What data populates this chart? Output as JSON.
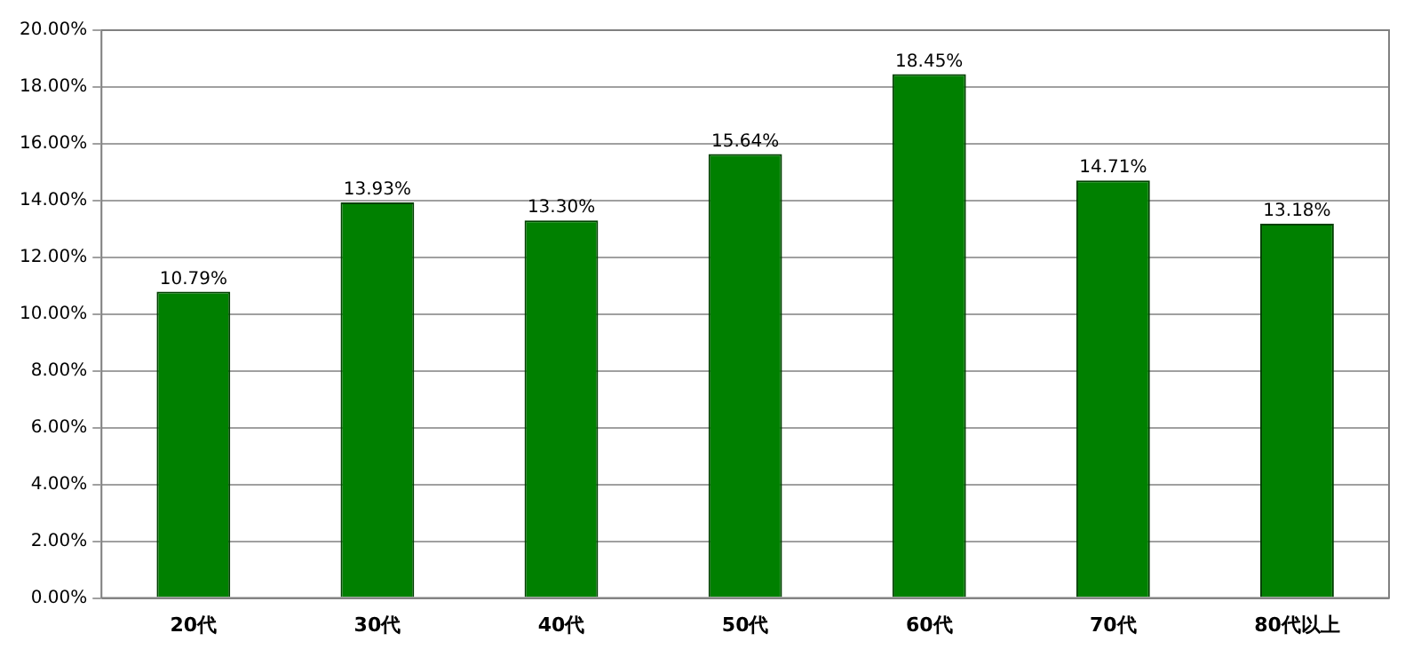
{
  "chart_data": {
    "type": "bar",
    "categories": [
      "20代",
      "30代",
      "40代",
      "50代",
      "60代",
      "70代",
      "80代以上"
    ],
    "values": [
      10.79,
      13.93,
      13.3,
      15.64,
      18.45,
      14.71,
      13.18
    ],
    "value_labels": [
      "10.79%",
      "13.93%",
      "13.30%",
      "15.64%",
      "18.45%",
      "14.71%",
      "13.18%"
    ],
    "color": "#008000",
    "ylim": [
      0,
      20
    ],
    "yticks": [
      {
        "value": 0,
        "label": "0.00%"
      },
      {
        "value": 2,
        "label": "2.00%"
      },
      {
        "value": 4,
        "label": "4.00%"
      },
      {
        "value": 6,
        "label": "6.00%"
      },
      {
        "value": 8,
        "label": "8.00%"
      },
      {
        "value": 10,
        "label": "10.00%"
      },
      {
        "value": 12,
        "label": "12.00%"
      },
      {
        "value": 14,
        "label": "14.00%"
      },
      {
        "value": 16,
        "label": "16.00%"
      },
      {
        "value": 18,
        "label": "18.00%"
      },
      {
        "value": 20,
        "label": "20.00%"
      }
    ],
    "grid": "y",
    "legend": false
  }
}
